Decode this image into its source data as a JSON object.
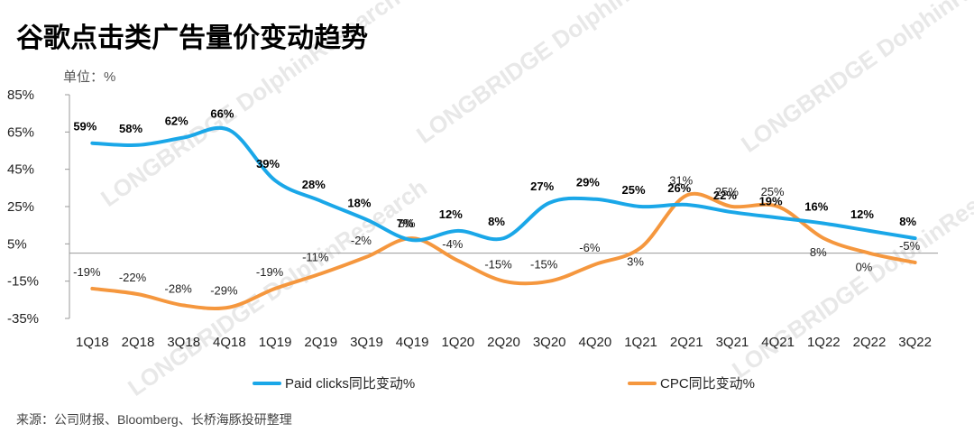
{
  "chart_data": {
    "type": "line",
    "title": "谷歌点击类广告量价变动趋势",
    "unit_label": "单位：%",
    "categories": [
      "1Q18",
      "2Q18",
      "3Q18",
      "4Q18",
      "1Q19",
      "2Q19",
      "3Q19",
      "4Q19",
      "1Q20",
      "2Q20",
      "3Q20",
      "4Q20",
      "1Q21",
      "2Q21",
      "3Q21",
      "4Q21",
      "1Q22",
      "2Q22",
      "3Q22"
    ],
    "y_ticks": [
      "85%",
      "65%",
      "45%",
      "25%",
      "5%",
      "-15%",
      "-35%"
    ],
    "ylim": [
      -35,
      85
    ],
    "series": [
      {
        "name": "Paid clicks同比变动%",
        "color": "#1aa7e8",
        "values": [
          59,
          58,
          62,
          66,
          39,
          28,
          18,
          7,
          12,
          8,
          27,
          29,
          25,
          26,
          22,
          19,
          16,
          12,
          8
        ],
        "labels": [
          "59%",
          "58%",
          "62%",
          "66%",
          "39%",
          "28%",
          "18%",
          "7%",
          "12%",
          "8%",
          "27%",
          "29%",
          "25%",
          "26%",
          "22%",
          "19%",
          "16%",
          "12%",
          "8%"
        ]
      },
      {
        "name": "CPC同比变动%",
        "color": "#f5973e",
        "values": [
          -19,
          -22,
          -28,
          -29,
          -19,
          -11,
          -2,
          8,
          -4,
          -15,
          -15,
          -6,
          3,
          31,
          25,
          25,
          8,
          0,
          -5
        ],
        "labels": [
          "-19%",
          "-22%",
          "-28%",
          "-29%",
          "-19%",
          "-11%",
          "-2%",
          "8%",
          "-4%",
          "-15%",
          "-15%",
          "-6%",
          "3%",
          "31%",
          "25%",
          "25%",
          "8%",
          "0%",
          "-5%"
        ]
      }
    ],
    "legend_position": "bottom",
    "source": "来源：公司财报、Bloomberg、长桥海豚投研整理",
    "watermark": "LONGBRIDGE DolphinResearch"
  }
}
